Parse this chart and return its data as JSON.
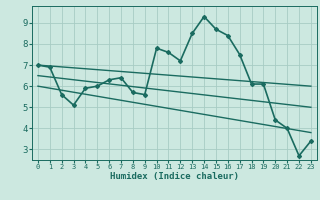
{
  "xlabel": "Humidex (Indice chaleur)",
  "ylabel": "",
  "bg_color": "#cce8e0",
  "grid_color": "#a8ccc4",
  "line_color": "#1a6b60",
  "xlim": [
    -0.5,
    23.5
  ],
  "ylim": [
    2.5,
    9.8
  ],
  "xticks": [
    0,
    1,
    2,
    3,
    4,
    5,
    6,
    7,
    8,
    9,
    10,
    11,
    12,
    13,
    14,
    15,
    16,
    17,
    18,
    19,
    20,
    21,
    22,
    23
  ],
  "yticks": [
    3,
    4,
    5,
    6,
    7,
    8,
    9
  ],
  "series": [
    {
      "x": [
        0,
        1,
        2,
        3,
        4,
        5,
        6,
        7,
        8,
        9,
        10,
        11,
        12,
        13,
        14,
        15,
        16,
        17,
        18,
        19,
        20,
        21,
        22,
        23
      ],
      "y": [
        7.0,
        6.9,
        5.6,
        5.1,
        5.9,
        6.0,
        6.3,
        6.4,
        5.7,
        5.6,
        7.8,
        7.6,
        7.2,
        8.5,
        9.3,
        8.7,
        8.4,
        7.5,
        6.1,
        6.1,
        4.4,
        4.0,
        2.7,
        3.4
      ],
      "has_markers": true,
      "linewidth": 1.2
    },
    {
      "x": [
        0,
        23
      ],
      "y": [
        7.0,
        6.0
      ],
      "has_markers": false,
      "linewidth": 1.0
    },
    {
      "x": [
        0,
        23
      ],
      "y": [
        6.5,
        5.0
      ],
      "has_markers": false,
      "linewidth": 1.0
    },
    {
      "x": [
        0,
        23
      ],
      "y": [
        6.0,
        3.8
      ],
      "has_markers": false,
      "linewidth": 1.0
    }
  ]
}
